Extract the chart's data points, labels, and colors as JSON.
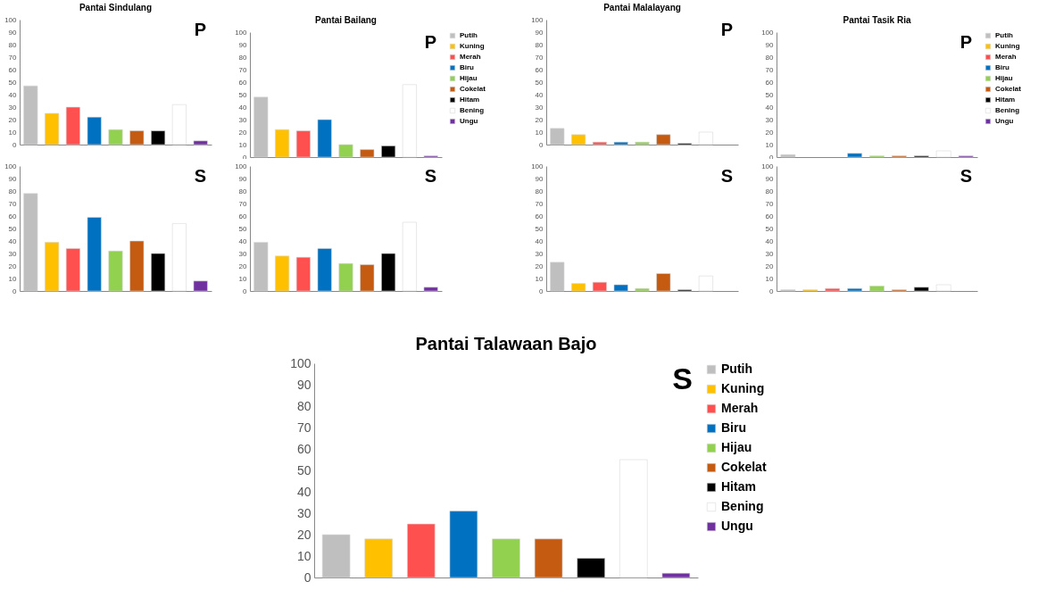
{
  "chart_data": [
    {
      "type": "bar",
      "title": "Pantai Sindulang",
      "annotations": [
        "P"
      ],
      "categories": [
        null
      ],
      "ylim": [
        0,
        100
      ],
      "yticks": [
        0,
        10,
        20,
        30,
        40,
        50,
        60,
        70,
        80,
        90,
        100
      ],
      "series": [
        {
          "color": "#bfbfbf",
          "values": [
            47
          ]
        },
        {
          "color": "#ffc000",
          "values": [
            25
          ]
        },
        {
          "color": "#ff5050",
          "values": [
            30
          ]
        },
        {
          "color": "#0070c0",
          "values": [
            22
          ]
        },
        {
          "color": "#92d050",
          "values": [
            12
          ]
        },
        {
          "color": "#c55a11",
          "values": [
            11
          ]
        },
        {
          "color": "#000000",
          "values": [
            11
          ]
        },
        {
          "color": "#ffffff",
          "values": [
            32
          ]
        },
        {
          "color": "#7030a0",
          "values": [
            3
          ]
        }
      ]
    },
    {
      "type": "bar",
      "title": "Pantai Bailang",
      "annotations": [
        "P"
      ],
      "categories": [
        null
      ],
      "ylim": [
        0,
        100
      ],
      "yticks": [
        0,
        10,
        20,
        30,
        40,
        50,
        60,
        70,
        80,
        90,
        100
      ],
      "legend": "right",
      "series": [
        {
          "name": "Putih",
          "color": "#bfbfbf",
          "values": [
            48
          ]
        },
        {
          "name": "Kuning",
          "color": "#ffc000",
          "values": [
            22
          ]
        },
        {
          "name": "Merah",
          "color": "#ff5050",
          "values": [
            21
          ]
        },
        {
          "name": "Biru",
          "color": "#0070c0",
          "values": [
            30
          ]
        },
        {
          "name": "Hijau",
          "color": "#92d050",
          "values": [
            10
          ]
        },
        {
          "name": "Cokelat",
          "color": "#c55a11",
          "values": [
            6
          ]
        },
        {
          "name": "Hitam",
          "color": "#000000",
          "values": [
            9
          ]
        },
        {
          "name": "Bening",
          "color": "#ffffff",
          "values": [
            58
          ]
        },
        {
          "name": "Ungu",
          "color": "#7030a0",
          "values": [
            1
          ]
        }
      ]
    },
    {
      "type": "bar",
      "title": "Pantai Malalayang",
      "annotations": [
        "P"
      ],
      "categories": [
        null
      ],
      "ylim": [
        0,
        100
      ],
      "yticks": [
        0,
        10,
        20,
        30,
        40,
        50,
        60,
        70,
        80,
        90,
        100
      ],
      "series": [
        {
          "color": "#bfbfbf",
          "values": [
            13
          ]
        },
        {
          "color": "#ffc000",
          "values": [
            8
          ]
        },
        {
          "color": "#ff5050",
          "values": [
            2
          ]
        },
        {
          "color": "#0070c0",
          "values": [
            2
          ]
        },
        {
          "color": "#92d050",
          "values": [
            2
          ]
        },
        {
          "color": "#c55a11",
          "values": [
            8
          ]
        },
        {
          "color": "#000000",
          "values": [
            1
          ]
        },
        {
          "color": "#ffffff",
          "values": [
            10
          ]
        },
        {
          "color": "#7030a0",
          "values": [
            null
          ]
        }
      ]
    },
    {
      "type": "bar",
      "title": "Pantai Tasik Ria",
      "annotations": [
        "P"
      ],
      "categories": [
        null
      ],
      "ylim": [
        0,
        100
      ],
      "yticks": [
        0,
        10,
        20,
        30,
        40,
        50,
        60,
        70,
        80,
        90,
        100
      ],
      "legend": "right",
      "series": [
        {
          "name": "Putih",
          "color": "#bfbfbf",
          "values": [
            2
          ]
        },
        {
          "name": "Kuning",
          "color": "#ffc000",
          "values": [
            null
          ]
        },
        {
          "name": "Merah",
          "color": "#ff5050",
          "values": [
            null
          ]
        },
        {
          "name": "Biru",
          "color": "#0070c0",
          "values": [
            3
          ]
        },
        {
          "name": "Hijau",
          "color": "#92d050",
          "values": [
            1
          ]
        },
        {
          "name": "Cokelat",
          "color": "#c55a11",
          "values": [
            1
          ]
        },
        {
          "name": "Hitam",
          "color": "#000000",
          "values": [
            1
          ]
        },
        {
          "name": "Bening",
          "color": "#ffffff",
          "values": [
            5
          ]
        },
        {
          "name": "Ungu",
          "color": "#7030a0",
          "values": [
            1
          ]
        }
      ]
    },
    {
      "type": "bar",
      "annotations": [
        "S"
      ],
      "categories": [
        null
      ],
      "ylim": [
        0,
        100
      ],
      "yticks": [
        0,
        10,
        20,
        30,
        40,
        50,
        60,
        70,
        80,
        90,
        100
      ],
      "series": [
        {
          "color": "#bfbfbf",
          "values": [
            78
          ]
        },
        {
          "color": "#ffc000",
          "values": [
            39
          ]
        },
        {
          "color": "#ff5050",
          "values": [
            34
          ]
        },
        {
          "color": "#0070c0",
          "values": [
            59
          ]
        },
        {
          "color": "#92d050",
          "values": [
            32
          ]
        },
        {
          "color": "#c55a11",
          "values": [
            40
          ]
        },
        {
          "color": "#000000",
          "values": [
            30
          ]
        },
        {
          "color": "#ffffff",
          "values": [
            54
          ]
        },
        {
          "color": "#7030a0",
          "values": [
            8
          ]
        }
      ]
    },
    {
      "type": "bar",
      "annotations": [
        "S"
      ],
      "categories": [
        null
      ],
      "ylim": [
        0,
        100
      ],
      "yticks": [
        0,
        10,
        20,
        30,
        40,
        50,
        60,
        70,
        80,
        90,
        100
      ],
      "series": [
        {
          "color": "#bfbfbf",
          "values": [
            39
          ]
        },
        {
          "color": "#ffc000",
          "values": [
            28
          ]
        },
        {
          "color": "#ff5050",
          "values": [
            27
          ]
        },
        {
          "color": "#0070c0",
          "values": [
            34
          ]
        },
        {
          "color": "#92d050",
          "values": [
            22
          ]
        },
        {
          "color": "#c55a11",
          "values": [
            21
          ]
        },
        {
          "color": "#000000",
          "values": [
            30
          ]
        },
        {
          "color": "#ffffff",
          "values": [
            55
          ]
        },
        {
          "color": "#7030a0",
          "values": [
            3
          ]
        }
      ]
    },
    {
      "type": "bar",
      "annotations": [
        "S"
      ],
      "categories": [
        null
      ],
      "ylim": [
        0,
        100
      ],
      "yticks": [
        0,
        10,
        20,
        30,
        40,
        50,
        60,
        70,
        80,
        90,
        100
      ],
      "series": [
        {
          "color": "#bfbfbf",
          "values": [
            23
          ]
        },
        {
          "color": "#ffc000",
          "values": [
            6
          ]
        },
        {
          "color": "#ff5050",
          "values": [
            7
          ]
        },
        {
          "color": "#0070c0",
          "values": [
            5
          ]
        },
        {
          "color": "#92d050",
          "values": [
            2
          ]
        },
        {
          "color": "#c55a11",
          "values": [
            14
          ]
        },
        {
          "color": "#000000",
          "values": [
            1
          ]
        },
        {
          "color": "#ffffff",
          "values": [
            12
          ]
        },
        {
          "color": "#7030a0",
          "values": [
            null
          ]
        }
      ]
    },
    {
      "type": "bar",
      "annotations": [
        "S"
      ],
      "categories": [
        null
      ],
      "ylim": [
        0,
        100
      ],
      "yticks": [
        0,
        10,
        20,
        30,
        40,
        50,
        60,
        70,
        80,
        90,
        100
      ],
      "series": [
        {
          "color": "#bfbfbf",
          "values": [
            1
          ]
        },
        {
          "color": "#ffc000",
          "values": [
            1
          ]
        },
        {
          "color": "#ff5050",
          "values": [
            2
          ]
        },
        {
          "color": "#0070c0",
          "values": [
            2
          ]
        },
        {
          "color": "#92d050",
          "values": [
            4
          ]
        },
        {
          "color": "#c55a11",
          "values": [
            1
          ]
        },
        {
          "color": "#000000",
          "values": [
            3
          ]
        },
        {
          "color": "#ffffff",
          "values": [
            5
          ]
        },
        {
          "color": "#7030a0",
          "values": [
            null
          ]
        }
      ]
    },
    {
      "type": "bar",
      "title": "Pantai Talawaan Bajo",
      "annotations": [
        "S"
      ],
      "categories": [
        null
      ],
      "ylim": [
        0,
        100
      ],
      "yticks": [
        0,
        10,
        20,
        30,
        40,
        50,
        60,
        70,
        80,
        90,
        100
      ],
      "legend": "right",
      "series": [
        {
          "name": "Putih",
          "color": "#bfbfbf",
          "values": [
            20
          ]
        },
        {
          "name": "Kuning",
          "color": "#ffc000",
          "values": [
            18
          ]
        },
        {
          "name": "Merah",
          "color": "#ff5050",
          "values": [
            25
          ]
        },
        {
          "name": "Biru",
          "color": "#0070c0",
          "values": [
            31
          ]
        },
        {
          "name": "Hijau",
          "color": "#92d050",
          "values": [
            18
          ]
        },
        {
          "name": "Cokelat",
          "color": "#c55a11",
          "values": [
            18
          ]
        },
        {
          "name": "Hitam",
          "color": "#000000",
          "values": [
            9
          ]
        },
        {
          "name": "Bening",
          "color": "#ffffff",
          "values": [
            55
          ]
        },
        {
          "name": "Ungu",
          "color": "#7030a0",
          "values": [
            2
          ]
        }
      ]
    }
  ]
}
